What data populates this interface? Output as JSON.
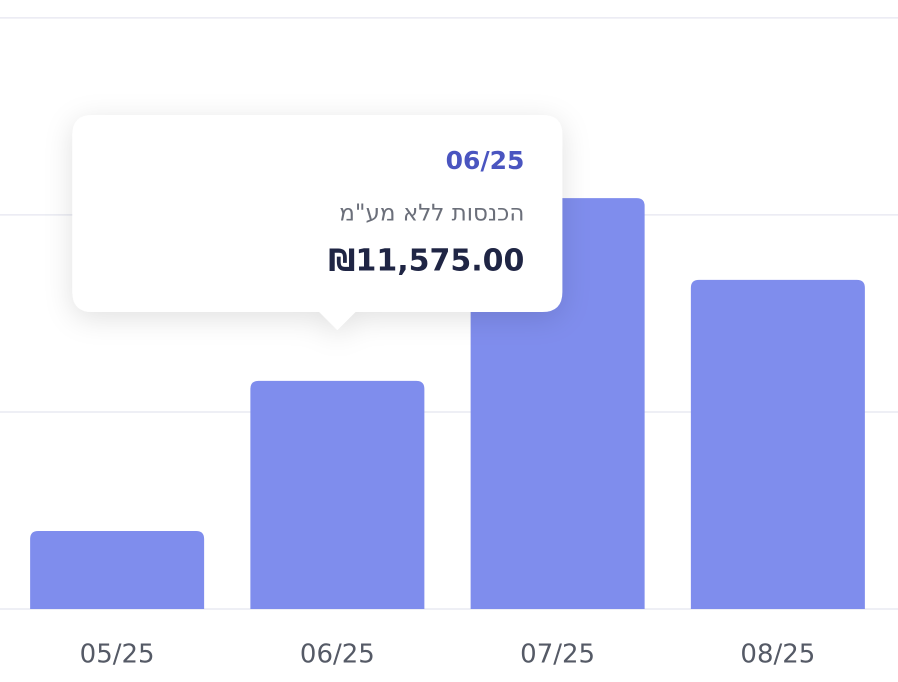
{
  "chart_data": {
    "type": "bar",
    "categories": [
      "05/25",
      "06/25",
      "07/25",
      "08/25"
    ],
    "series": [
      {
        "name": "הכנסות ללא מע\"מ",
        "color": "#7f8ded",
        "values": [
          3960,
          11575,
          20850,
          16700
        ],
        "value_labels": [
          null,
          "₪11,575.00",
          null,
          null
        ]
      }
    ],
    "ylim": [
      0,
      30500
    ],
    "yticks": [
      0,
      10000,
      20000,
      30000
    ],
    "grid": true
  }
}
